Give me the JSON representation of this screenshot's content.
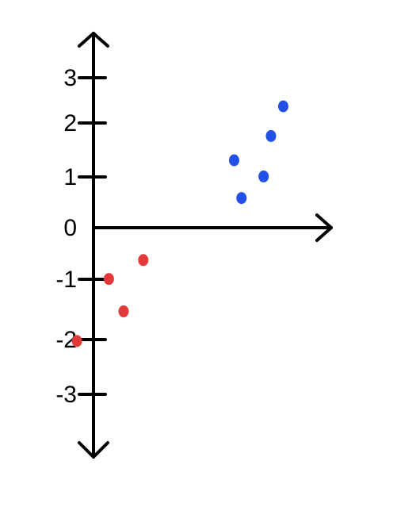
{
  "chart_data": {
    "type": "scatter",
    "title": "",
    "xlabel": "",
    "ylabel": "",
    "ylim": [
      -3,
      3
    ],
    "y_ticks": [
      {
        "value": 3,
        "label": "3"
      },
      {
        "value": 2,
        "label": "2"
      },
      {
        "value": 1,
        "label": "1"
      },
      {
        "value": 0,
        "label": "0"
      },
      {
        "value": -1,
        "label": "-1"
      },
      {
        "value": -2,
        "label": "-2"
      },
      {
        "value": -3,
        "label": "-3"
      }
    ],
    "grid": false,
    "legend": "none",
    "series": [
      {
        "color": "#2350e6",
        "points": [
          {
            "x": 1.25,
            "y": 1.25
          },
          {
            "x": 1.4,
            "y": 0.55
          },
          {
            "x": 1.85,
            "y": 0.95
          },
          {
            "x": 2.0,
            "y": 1.7
          },
          {
            "x": 2.25,
            "y": 2.25
          }
        ]
      },
      {
        "color": "#e23a3a",
        "points": [
          {
            "x": -0.6,
            "y": -0.6
          },
          {
            "x": -1.0,
            "y": -1.55
          },
          {
            "x": -1.3,
            "y": -0.95
          },
          {
            "x": -1.95,
            "y": -2.1
          }
        ]
      }
    ]
  }
}
